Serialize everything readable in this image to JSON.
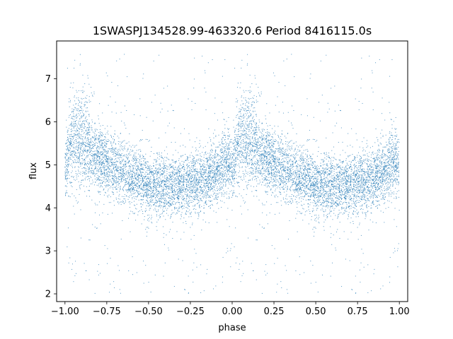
{
  "chart_data": {
    "type": "scatter",
    "title": "1SWASPJ134528.99-463320.6 Period 8416115.0s",
    "xlabel": "phase",
    "ylabel": "flux",
    "xlim": [
      -1.05,
      1.05
    ],
    "ylim": [
      1.82,
      7.88
    ],
    "xticks": [
      -1.0,
      -0.75,
      -0.5,
      -0.25,
      0.0,
      0.25,
      0.5,
      0.75,
      1.0
    ],
    "xtick_labels": [
      "−1.00",
      "−0.75",
      "−0.50",
      "−0.25",
      "0.00",
      "0.25",
      "0.50",
      "0.75",
      "1.00"
    ],
    "yticks": [
      2,
      3,
      4,
      5,
      6,
      7
    ],
    "ytick_labels": [
      "2",
      "3",
      "4",
      "5",
      "6",
      "7"
    ],
    "grid": false,
    "point_color": "#1f77b4",
    "phase_profile": {
      "phase": [
        0.0,
        0.02,
        0.05,
        0.08,
        0.12,
        0.15,
        0.2,
        0.25,
        0.3,
        0.35,
        0.4,
        0.45,
        0.5,
        0.55,
        0.6,
        0.65,
        0.7,
        0.75,
        0.8,
        0.85,
        0.9,
        0.95,
        1.0
      ],
      "median_flux": [
        4.9,
        5.3,
        5.7,
        5.6,
        5.6,
        5.3,
        5.2,
        5.0,
        4.9,
        4.9,
        4.7,
        4.7,
        4.5,
        4.5,
        4.5,
        4.5,
        4.5,
        4.6,
        4.6,
        4.7,
        4.8,
        5.0,
        5.0
      ],
      "spread": [
        0.35,
        0.45,
        0.55,
        0.55,
        0.55,
        0.45,
        0.4,
        0.35,
        0.35,
        0.35,
        0.35,
        0.35,
        0.35,
        0.35,
        0.35,
        0.35,
        0.35,
        0.35,
        0.35,
        0.35,
        0.35,
        0.4,
        0.4
      ]
    },
    "y_extent": [
      2.0,
      7.6
    ],
    "points_per_half": 5200
  }
}
